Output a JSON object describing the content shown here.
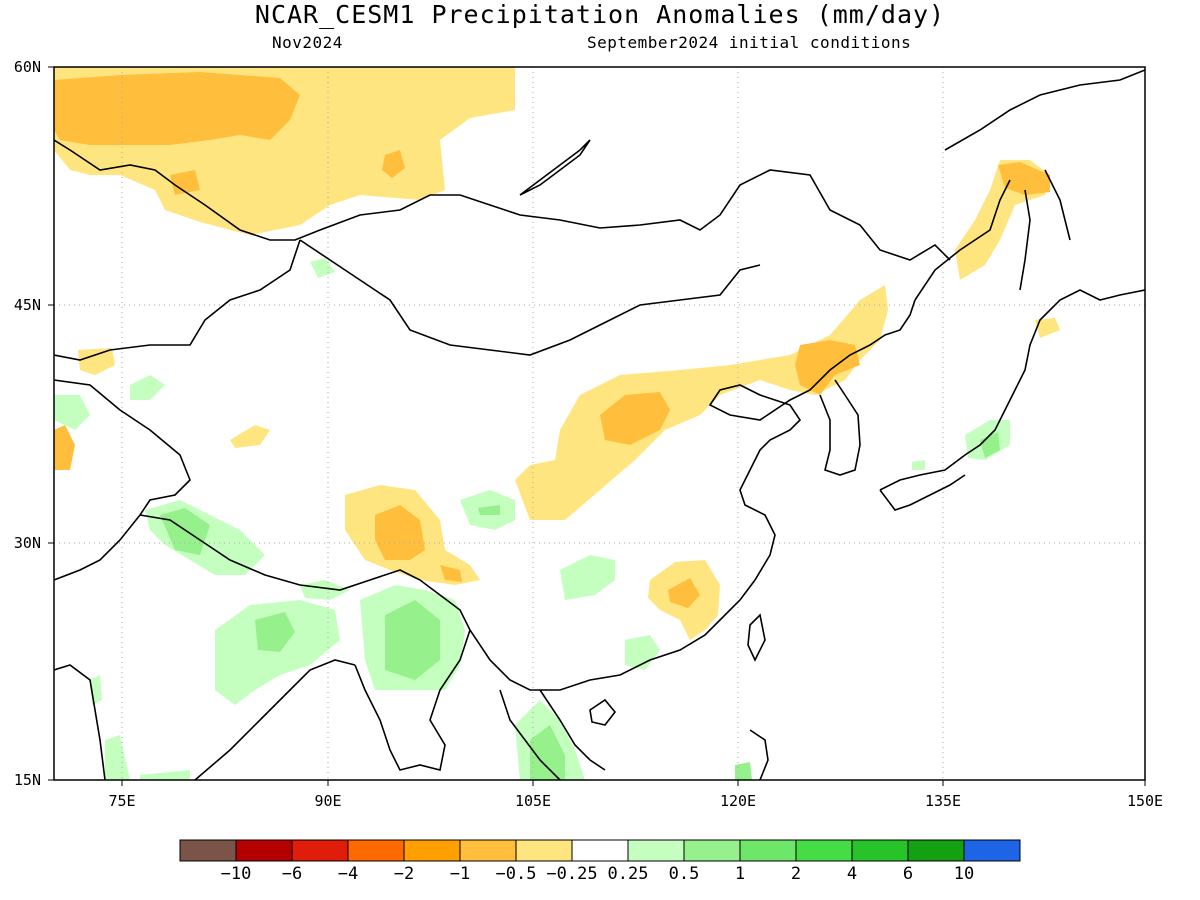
{
  "header": {
    "title": "NCAR_CESM1 Precipitation Anomalies (mm/day)",
    "left_subtitle": "Nov2024",
    "right_subtitle": "September2024 initial conditions"
  },
  "map": {
    "lon_range": [
      69,
      150
    ],
    "lat_range": [
      15,
      60
    ],
    "lat_labels": [
      "60N",
      "45N",
      "30N",
      "15N"
    ],
    "lon_labels": [
      "75E",
      "90E",
      "105E",
      "120E",
      "135E",
      "150E"
    ]
  },
  "colorbar": {
    "colors": [
      "#7a5447",
      "#b40000",
      "#e01c0a",
      "#ff6a00",
      "#ffa000",
      "#ffbe3c",
      "#ffe580",
      "#ffffff",
      "#c4ffc0",
      "#96f08c",
      "#6ee66a",
      "#46dc46",
      "#28c328",
      "#13a013",
      "#1e64e6"
    ],
    "labels": [
      "−10",
      "−6",
      "−4",
      "−2",
      "−1",
      "−0.5",
      "−0.25",
      "0.25",
      "0.5",
      "1",
      "2",
      "4",
      "6",
      "10"
    ]
  },
  "anomaly_colors": {
    "dry_light": "#ffe580",
    "dry_mid": "#ffbe3c",
    "dry_strong": "#ffa000",
    "wet_light": "#c4ffc0",
    "wet_mid": "#96f08c",
    "wet_strong": "#6ee66a"
  }
}
